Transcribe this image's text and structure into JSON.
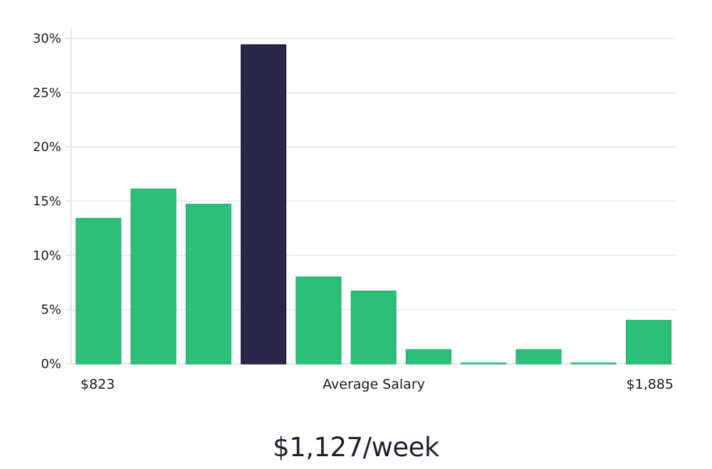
{
  "chart_data": {
    "type": "bar",
    "title": "",
    "xlabel": "Average Salary",
    "ylabel": "",
    "ylim": [
      0,
      30
    ],
    "y_ticks": [
      "0%",
      "5%",
      "10%",
      "15%",
      "20%",
      "25%",
      "30%"
    ],
    "x_min_label": "$823",
    "x_max_label": "$1,885",
    "values": [
      13.4,
      16.1,
      14.7,
      29.4,
      8.0,
      6.7,
      1.3,
      0.05,
      1.3,
      0.05,
      4.0
    ],
    "highlight_index": 3,
    "grid": true,
    "colors": {
      "bar": "#2bbf77",
      "bar_edge": "#22b06b",
      "highlight": "#2a2647",
      "highlight_edge": "#1b1838"
    }
  },
  "summary": {
    "average_salary": "$1,127/week"
  }
}
